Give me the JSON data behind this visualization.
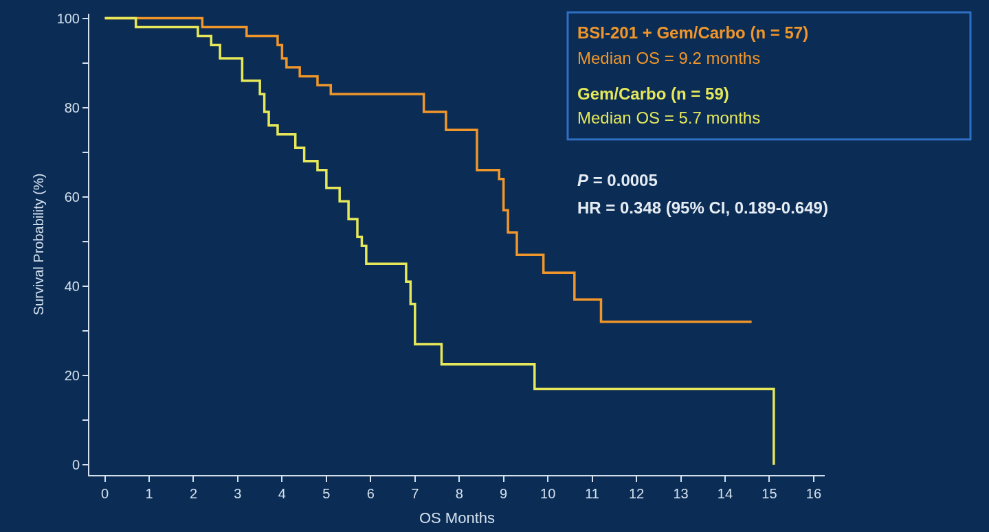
{
  "chart_data": {
    "type": "step",
    "xlabel": "OS Months",
    "ylabel": "Survival Probability (%)",
    "xlim": [
      -0.35,
      16.25
    ],
    "xticks": [
      0,
      1,
      2,
      3,
      4,
      5,
      6,
      7,
      8,
      9,
      10,
      11,
      12,
      13,
      14,
      15,
      16
    ],
    "ylim": [
      -2.3,
      101
    ],
    "yticks": [
      0,
      {
        "value": 10,
        "label": null
      },
      20,
      {
        "value": 30,
        "label": null
      },
      40,
      {
        "value": 50,
        "label": null
      },
      60,
      {
        "value": 70,
        "label": null
      },
      80,
      {
        "value": 90,
        "label": null
      },
      100
    ],
    "grid": false,
    "legend": false,
    "marker": "none",
    "line_style": "solid",
    "series": [
      {
        "name": "BSI-201 + Gem/Carbo (n = 57)",
        "color": "#f0962a",
        "x": [
          0,
          2.2,
          3.2,
          3.9,
          4.0,
          4.1,
          4.4,
          4.8,
          5.1,
          7.2,
          7.7,
          8.4,
          8.9,
          9.0,
          9.1,
          9.3,
          9.9,
          10.6,
          11.2,
          14.6
        ],
        "values": [
          100,
          98,
          96,
          94,
          91,
          89,
          87,
          85,
          83,
          79,
          75,
          66,
          64,
          57,
          52,
          47,
          43,
          37,
          32,
          32
        ]
      },
      {
        "name": "Gem/Carbo (n = 59)",
        "color": "#e6e85a",
        "x": [
          0,
          0.7,
          2.1,
          2.4,
          2.6,
          3.1,
          3.5,
          3.6,
          3.7,
          3.9,
          4.3,
          4.5,
          4.8,
          5.0,
          5.3,
          5.5,
          5.7,
          5.8,
          5.9,
          6.8,
          6.9,
          7.0,
          7.6,
          9.7,
          15.1
        ],
        "values": [
          100,
          98,
          96,
          94,
          91,
          86,
          83,
          79,
          76,
          74,
          71,
          68,
          66,
          62,
          59,
          55,
          51,
          49,
          45,
          41,
          36,
          27,
          22.5,
          17,
          0
        ]
      }
    ],
    "annotations": [
      "Median OS = 9.2 months",
      "Median OS = 5.7 months",
      "P = 0.0005",
      "HR = 0.348 (95% CI, 0.189-0.649)"
    ]
  }
}
